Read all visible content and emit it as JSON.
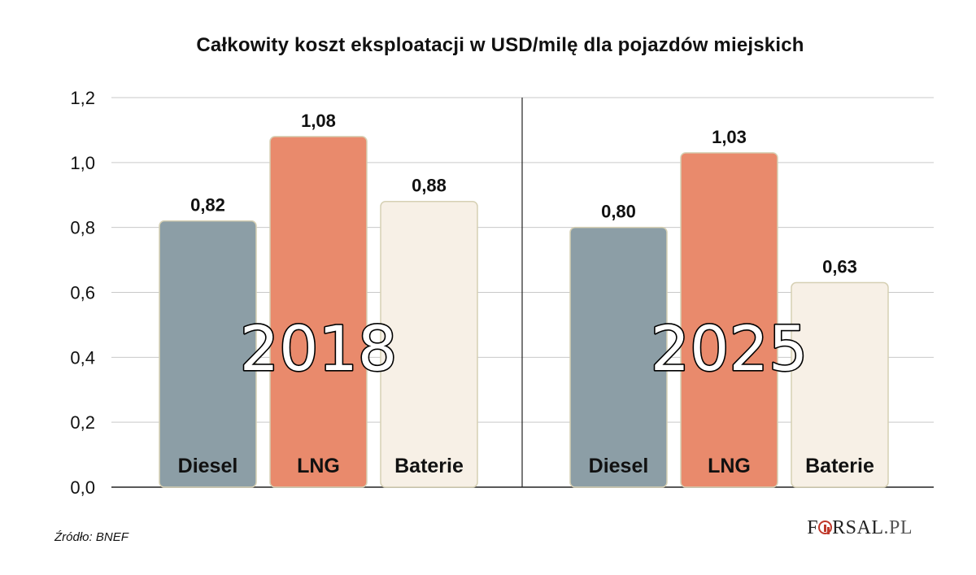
{
  "chart_data": {
    "type": "bar",
    "title": "Całkowity koszt eksploatacji w USD/milę dla pojazdów miejskich",
    "ylim": [
      0,
      1.2
    ],
    "y_ticks": [
      "0,0",
      "0,2",
      "0,4",
      "0,6",
      "0,8",
      "1,0",
      "1,2"
    ],
    "grid": true,
    "groups": [
      {
        "label": "2018",
        "bars": [
          {
            "category": "Diesel",
            "value": 0.82,
            "value_label": "0,82",
            "color": "#8c9ea6"
          },
          {
            "category": "LNG",
            "value": 1.08,
            "value_label": "1,08",
            "color": "#e98a6c"
          },
          {
            "category": "Baterie",
            "value": 0.88,
            "value_label": "0,88",
            "color": "#f7f0e6"
          }
        ]
      },
      {
        "label": "2025",
        "bars": [
          {
            "category": "Diesel",
            "value": 0.8,
            "value_label": "0,80",
            "color": "#8c9ea6"
          },
          {
            "category": "LNG",
            "value": 1.03,
            "value_label": "1,03",
            "color": "#e98a6c"
          },
          {
            "category": "Baterie",
            "value": 0.63,
            "value_label": "0,63",
            "color": "#f7f0e6"
          }
        ]
      }
    ]
  },
  "source": "Źródło: BNEF",
  "brand": {
    "f": "F",
    "rest": "RSAL",
    "suffix": ".PL"
  }
}
